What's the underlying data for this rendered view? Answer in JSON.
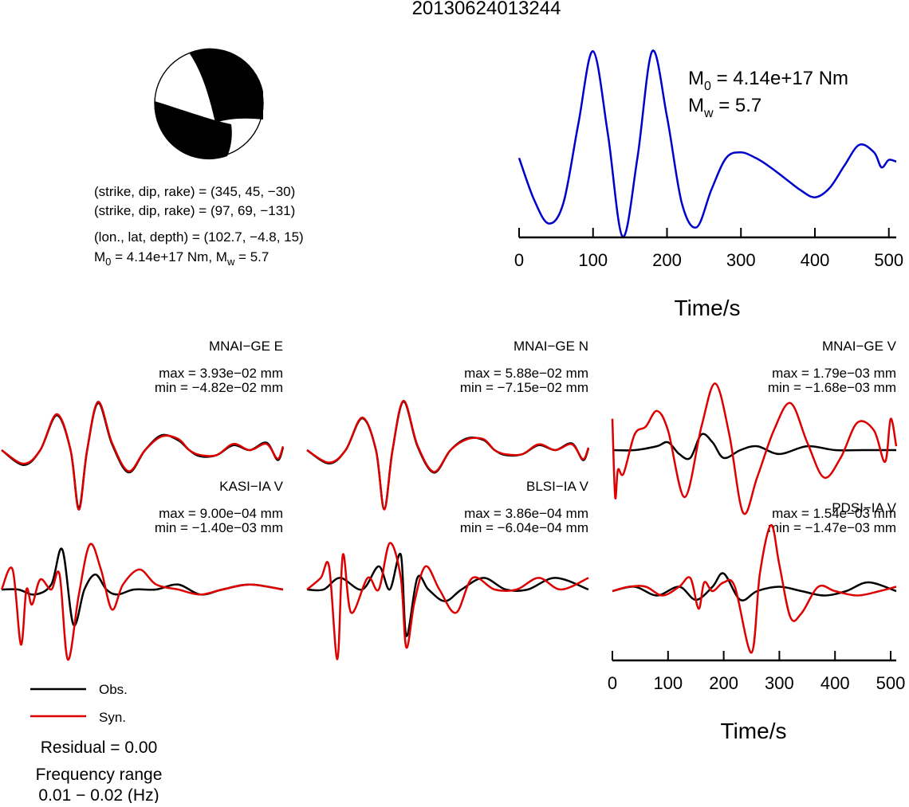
{
  "page_title": "20130624013244",
  "beachball": {
    "fill_color": "#000000",
    "info_lines": [
      "(strike, dip, rake) = (345, 45, −30)",
      "(strike, dip, rake) = (97, 69, −131)",
      "(lon., lat, depth) = (102.7, −4.8, 15)"
    ],
    "m0_line": {
      "m_label": "M",
      "m_sub": "0",
      "mid": " = 4.14e+17 Nm, M",
      "w_sub": "w",
      "tail": " = 5.7"
    }
  },
  "stf": {
    "line_color": "#0000cc",
    "m0_label": {
      "m": "M",
      "sub": "0",
      "text": " = 4.14e+17 Nm"
    },
    "mw_label": {
      "m": "M",
      "sub": "w",
      "text": " = 5.7"
    }
  },
  "axes": {
    "time_label": "Time/s",
    "ticks": [
      "0",
      "100",
      "200",
      "300",
      "400",
      "500"
    ]
  },
  "legend": {
    "obs": {
      "label": "Obs.",
      "color": "#000000"
    },
    "syn": {
      "label": "Syn.",
      "color": "#dd0000"
    }
  },
  "residual": "Residual = 0.00",
  "freq_title": "Frequency range",
  "freq_value": "0.01 − 0.02 (Hz)",
  "chart_data": [
    {
      "type": "line",
      "name": "source-time-function",
      "x": [
        0,
        20,
        40,
        60,
        80,
        100,
        120,
        140,
        160,
        180,
        200,
        220,
        240,
        260,
        280,
        300,
        320,
        340,
        360,
        380,
        400,
        420,
        440,
        460,
        480,
        490,
        500,
        510
      ],
      "values": [
        0.42,
        0.2,
        0.07,
        0.18,
        0.6,
        0.99,
        0.55,
        0.0,
        0.42,
        0.99,
        0.64,
        0.18,
        0.05,
        0.25,
        0.42,
        0.45,
        0.42,
        0.37,
        0.31,
        0.25,
        0.21,
        0.26,
        0.38,
        0.49,
        0.45,
        0.37,
        0.41,
        0.4
      ],
      "xlim": [
        0,
        510
      ],
      "xlabel": "Time/s",
      "xticks": [
        0,
        100,
        200,
        300,
        400,
        500
      ]
    },
    {
      "type": "line",
      "station": "MNAI−GE E",
      "max_label": "max = 3.93e−02 mm",
      "min_label": "min = −4.82e−02 mm",
      "xlim": [
        0,
        510
      ],
      "ylim": [
        -0.0482,
        0.0393
      ],
      "series": [
        {
          "name": "Obs.",
          "x": [
            0,
            40,
            70,
            100,
            125,
            140,
            155,
            175,
            200,
            230,
            260,
            290,
            320,
            340,
            360,
            390,
            420,
            450,
            480,
            500,
            510
          ],
          "values": [
            0.0,
            -0.012,
            0.0,
            0.028,
            0.0,
            -0.046,
            0.0,
            0.038,
            0.005,
            -0.018,
            0.0,
            0.012,
            0.008,
            0.0,
            -0.005,
            -0.004,
            0.004,
            0.0,
            0.006,
            -0.008,
            0.002
          ]
        },
        {
          "name": "Syn.",
          "x": [
            0,
            40,
            70,
            100,
            125,
            140,
            155,
            175,
            200,
            230,
            260,
            290,
            320,
            340,
            360,
            390,
            420,
            450,
            480,
            500,
            510
          ],
          "values": [
            0.0,
            -0.011,
            0.0,
            0.029,
            0.0,
            -0.048,
            0.0,
            0.039,
            0.006,
            -0.017,
            0.0,
            0.011,
            0.009,
            0.0,
            -0.004,
            -0.004,
            0.005,
            0.0,
            0.005,
            -0.007,
            0.003
          ]
        }
      ]
    },
    {
      "type": "line",
      "station": "MNAI−GE N",
      "max_label": "max = 5.88e−02 mm",
      "min_label": "min = −7.15e−02 mm",
      "xlim": [
        0,
        510
      ],
      "ylim": [
        -0.0715,
        0.0588
      ],
      "series": [
        {
          "name": "Obs.",
          "x": [
            0,
            40,
            70,
            100,
            125,
            140,
            155,
            175,
            200,
            230,
            260,
            290,
            320,
            340,
            360,
            390,
            420,
            450,
            480,
            500,
            510
          ],
          "values": [
            0.0,
            -0.016,
            0.0,
            0.038,
            0.0,
            -0.07,
            0.0,
            0.058,
            0.005,
            -0.027,
            0.0,
            0.014,
            0.012,
            0.0,
            -0.006,
            -0.005,
            0.006,
            0.0,
            0.008,
            -0.012,
            0.002
          ]
        },
        {
          "name": "Syn.",
          "x": [
            0,
            40,
            70,
            100,
            125,
            140,
            155,
            175,
            200,
            230,
            260,
            290,
            320,
            340,
            360,
            390,
            420,
            450,
            480,
            500,
            510
          ],
          "values": [
            0.0,
            -0.015,
            0.0,
            0.039,
            0.0,
            -0.071,
            0.0,
            0.059,
            0.006,
            -0.026,
            0.0,
            0.013,
            0.013,
            0.0,
            -0.005,
            -0.005,
            0.007,
            0.0,
            0.007,
            -0.011,
            0.003
          ]
        }
      ]
    },
    {
      "type": "line",
      "station": "MNAI−GE V",
      "max_label": "max = 1.79e−03 mm",
      "min_label": "min = −1.68e−03 mm",
      "xlim": [
        0,
        510
      ],
      "ylim": [
        -0.00168,
        0.00179
      ],
      "series": [
        {
          "name": "Obs.",
          "x": [
            0,
            40,
            80,
            100,
            120,
            140,
            160,
            180,
            200,
            230,
            260,
            300,
            350,
            400,
            450,
            500,
            510
          ],
          "values": [
            0.0,
            0.0,
            0.0001,
            0.0002,
            -0.0001,
            -0.0002,
            0.0004,
            0.0002,
            -0.0002,
            0.0,
            0.0001,
            -0.0001,
            0.0001,
            0.0,
            0.0,
            0.0,
            0.0
          ]
        },
        {
          "name": "Syn.",
          "x": [
            0,
            5,
            10,
            20,
            40,
            60,
            80,
            100,
            130,
            160,
            185,
            210,
            235,
            260,
            290,
            320,
            350,
            380,
            410,
            440,
            470,
            490,
            500,
            510
          ],
          "values": [
            0.0008,
            -0.0012,
            -0.0005,
            -0.0006,
            0.0004,
            0.0006,
            0.001,
            0.0005,
            -0.0012,
            0.0006,
            0.0017,
            0.0004,
            -0.0016,
            -0.0007,
            0.0005,
            0.0012,
            0.0002,
            -0.0007,
            -0.0002,
            0.0007,
            0.0005,
            -0.0003,
            0.0008,
            0.0001
          ]
        }
      ]
    },
    {
      "type": "line",
      "station": "KASI−IA V",
      "max_label": "max = 9.00e−04 mm",
      "min_label": "min = −1.40e−03 mm",
      "xlim": [
        0,
        510
      ],
      "ylim": [
        -0.0014,
        0.0009
      ],
      "series": [
        {
          "name": "Obs.",
          "x": [
            0,
            30,
            60,
            90,
            110,
            130,
            150,
            170,
            190,
            210,
            240,
            280,
            320,
            360,
            400,
            450,
            510
          ],
          "values": [
            0.0,
            0.0,
            -0.0001,
            0.0001,
            0.0008,
            -0.0007,
            0.0,
            0.0003,
            0.0,
            -0.0001,
            0.0,
            0.0,
            0.0001,
            -0.0001,
            0.0,
            0.0001,
            0.0
          ]
        },
        {
          "name": "Syn.",
          "x": [
            0,
            20,
            35,
            45,
            55,
            70,
            90,
            105,
            120,
            140,
            160,
            180,
            200,
            220,
            250,
            280,
            320,
            360,
            400,
            450,
            510
          ],
          "values": [
            0.0,
            0.0004,
            -0.0011,
            0.0,
            -0.0003,
            0.0002,
            0.0,
            0.0003,
            -0.0014,
            -0.0001,
            0.0009,
            0.0004,
            -0.0004,
            0.0001,
            0.0004,
            0.0001,
            0.0,
            -0.0001,
            0.0,
            0.0001,
            0.0
          ]
        }
      ]
    },
    {
      "type": "line",
      "station": "BLSI−IA V",
      "max_label": "max = 3.86e−04 mm",
      "min_label": "min = −6.04e−04 mm",
      "xlim": [
        0,
        510
      ],
      "ylim": [
        -0.000604,
        0.000386
      ],
      "series": [
        {
          "name": "Obs.",
          "x": [
            0,
            30,
            60,
            100,
            130,
            150,
            170,
            180,
            200,
            220,
            250,
            280,
            320,
            360,
            400,
            450,
            510
          ],
          "values": [
            0.0,
            0.0,
            0.0001,
            0.0,
            0.0002,
            0.0,
            0.0003,
            -0.0004,
            0.0001,
            0.0,
            -0.0001,
            0.0,
            0.0001,
            0.0,
            0.0,
            0.0001,
            0.0
          ]
        },
        {
          "name": "Syn.",
          "x": [
            0,
            25,
            40,
            55,
            65,
            80,
            110,
            130,
            150,
            170,
            180,
            195,
            215,
            240,
            270,
            300,
            340,
            380,
            420,
            460,
            510
          ],
          "values": [
            0.0,
            0.0001,
            0.0002,
            -0.0006,
            0.0003,
            -0.0002,
            0.0001,
            0.0,
            0.0004,
            0.0001,
            -0.0005,
            -0.0001,
            0.0002,
            0.0,
            -0.0002,
            0.0001,
            0.0,
            0.0,
            0.0001,
            0.0,
            0.0001
          ]
        }
      ]
    },
    {
      "type": "line",
      "station": "PDSI−IA V",
      "max_label": "max = 1.54e−03 mm",
      "min_label": "min = −1.47e−03 mm",
      "xlim": [
        0,
        510
      ],
      "ylim": [
        -0.00147,
        0.00154
      ],
      "series": [
        {
          "name": "Obs.",
          "x": [
            0,
            40,
            80,
            120,
            150,
            180,
            200,
            230,
            260,
            300,
            340,
            380,
            420,
            460,
            510
          ],
          "values": [
            0.0,
            0.0001,
            -0.0001,
            0.0001,
            -0.0002,
            0.0001,
            0.0004,
            -0.0002,
            0.0,
            0.0001,
            0.0,
            -0.0001,
            0.0,
            0.0002,
            0.0
          ]
        },
        {
          "name": "Syn.",
          "x": [
            0,
            30,
            60,
            90,
            120,
            140,
            155,
            165,
            180,
            200,
            220,
            250,
            265,
            285,
            300,
            320,
            340,
            370,
            400,
            440,
            480,
            510
          ],
          "values": [
            0.0,
            0.0001,
            0.0001,
            -0.0001,
            0.0001,
            0.0003,
            -0.0004,
            0.0002,
            0.0,
            0.0002,
            0.0001,
            -0.0014,
            0.0004,
            0.0015,
            0.0006,
            -0.0006,
            -0.0005,
            0.0001,
            0.0,
            -0.0001,
            0.0,
            0.0001
          ]
        }
      ]
    }
  ]
}
